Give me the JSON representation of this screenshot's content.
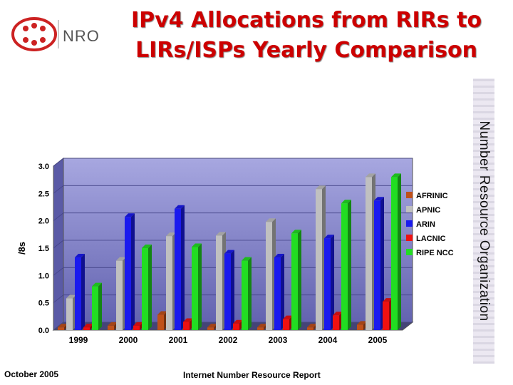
{
  "header": {
    "title_line1": "IPv4 Allocations from RIRs to",
    "title_line2": "LIRs/ISPs Yearly Comparison",
    "logo_text": "NRO"
  },
  "sidebar": {
    "text": "Number Resource Organization"
  },
  "footer": {
    "left": "October 2005",
    "center": "Internet Number Resource Report"
  },
  "colors": {
    "AFRINIC": "#c0501a",
    "APNIC": "#c0c0c0",
    "ARIN": "#1a1aee",
    "LACNIC": "#ee1111",
    "RIPE NCC": "#22dd22",
    "plot_background": "#8585cc",
    "title": "#cc0000"
  },
  "chart_data": {
    "type": "bar",
    "categories": [
      "1999",
      "2000",
      "2001",
      "2002",
      "2003",
      "2004",
      "2005"
    ],
    "ylabel": "/8s",
    "xlabel": "",
    "ylim": [
      0,
      3.0
    ],
    "yticks": [
      "0.0",
      "0.5",
      "1.0",
      "1.5",
      "2.0",
      "2.5",
      "3.0"
    ],
    "grid": true,
    "legend_position": "right",
    "series": [
      {
        "name": "AFRINIC",
        "values": [
          0.05,
          0.08,
          0.28,
          0.05,
          0.05,
          0.05,
          0.1
        ]
      },
      {
        "name": "APNIC",
        "values": [
          0.58,
          1.27,
          1.72,
          1.73,
          1.98,
          2.58,
          2.8
        ]
      },
      {
        "name": "ARIN",
        "values": [
          1.33,
          2.07,
          2.22,
          1.4,
          1.33,
          1.68,
          2.37
        ]
      },
      {
        "name": "LACNIC",
        "values": [
          0.05,
          0.08,
          0.15,
          0.12,
          0.2,
          0.27,
          0.52
        ]
      },
      {
        "name": "RIPE NCC",
        "values": [
          0.8,
          1.5,
          1.52,
          1.27,
          1.77,
          2.32,
          2.8
        ]
      }
    ]
  }
}
